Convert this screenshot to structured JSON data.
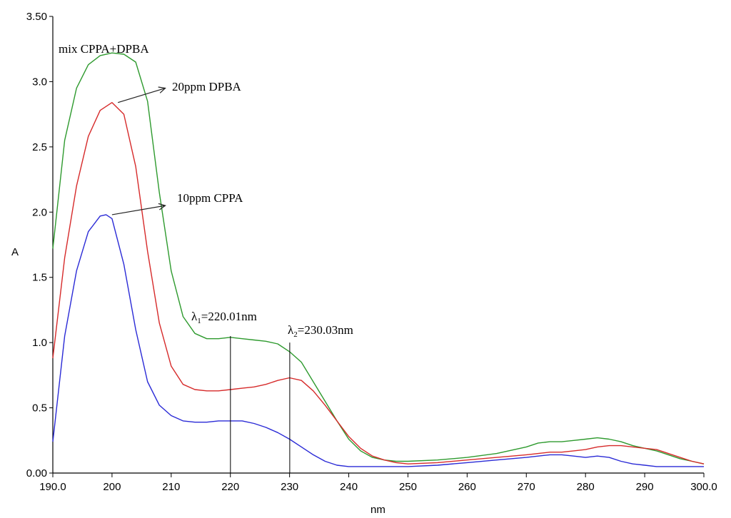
{
  "chart_data": {
    "type": "line",
    "xlabel": "nm",
    "ylabel": "A",
    "xlim": [
      190,
      300
    ],
    "ylim": [
      0,
      3.5
    ],
    "xticks": [
      "190.0",
      "200",
      "210",
      "220",
      "230",
      "240",
      "250",
      "260",
      "270",
      "280",
      "290",
      "300.0"
    ],
    "yticks": [
      "0.00",
      "0.5",
      "1.0",
      "1.5",
      "2.0",
      "2.5",
      "3.0",
      "3.50"
    ],
    "grid": false,
    "series": [
      {
        "name": "mix CPPA+DPBA",
        "color": "#2e9a2e",
        "x": [
          190,
          192,
          194,
          196,
          198,
          200,
          202,
          204,
          206,
          208,
          210,
          212,
          214,
          216,
          218,
          220,
          222,
          224,
          226,
          228,
          230,
          232,
          234,
          236,
          238,
          240,
          242,
          244,
          246,
          248,
          250,
          255,
          260,
          265,
          270,
          272,
          274,
          276,
          278,
          280,
          282,
          284,
          286,
          288,
          290,
          292,
          294,
          296,
          298,
          300
        ],
        "y": [
          1.72,
          2.55,
          2.95,
          3.13,
          3.2,
          3.22,
          3.21,
          3.15,
          2.85,
          2.15,
          1.55,
          1.2,
          1.07,
          1.03,
          1.03,
          1.04,
          1.03,
          1.02,
          1.01,
          0.99,
          0.93,
          0.85,
          0.7,
          0.55,
          0.4,
          0.26,
          0.17,
          0.12,
          0.1,
          0.09,
          0.09,
          0.1,
          0.12,
          0.15,
          0.2,
          0.23,
          0.24,
          0.24,
          0.25,
          0.26,
          0.27,
          0.26,
          0.24,
          0.21,
          0.19,
          0.17,
          0.14,
          0.11,
          0.09,
          0.07
        ]
      },
      {
        "name": "20ppm DPBA",
        "color": "#d62a2a",
        "x": [
          190,
          192,
          194,
          196,
          198,
          200,
          202,
          204,
          206,
          208,
          210,
          212,
          214,
          216,
          218,
          220,
          222,
          224,
          226,
          228,
          230,
          232,
          234,
          236,
          238,
          240,
          242,
          244,
          246,
          248,
          250,
          255,
          260,
          265,
          270,
          272,
          274,
          276,
          278,
          280,
          282,
          284,
          286,
          288,
          290,
          292,
          294,
          296,
          298,
          300
        ],
        "y": [
          0.88,
          1.65,
          2.2,
          2.58,
          2.78,
          2.84,
          2.75,
          2.35,
          1.7,
          1.15,
          0.82,
          0.68,
          0.64,
          0.63,
          0.63,
          0.64,
          0.65,
          0.66,
          0.68,
          0.71,
          0.73,
          0.71,
          0.63,
          0.52,
          0.4,
          0.28,
          0.19,
          0.13,
          0.1,
          0.08,
          0.07,
          0.08,
          0.1,
          0.12,
          0.14,
          0.15,
          0.16,
          0.16,
          0.17,
          0.18,
          0.2,
          0.21,
          0.21,
          0.2,
          0.19,
          0.18,
          0.15,
          0.12,
          0.09,
          0.07
        ]
      },
      {
        "name": "10ppm CPPA",
        "color": "#2a2ad6",
        "x": [
          190,
          192,
          194,
          196,
          198,
          199,
          200,
          202,
          204,
          206,
          208,
          210,
          212,
          214,
          216,
          218,
          220,
          222,
          224,
          226,
          228,
          230,
          232,
          234,
          236,
          238,
          240,
          245,
          250,
          255,
          260,
          265,
          270,
          272,
          274,
          276,
          278,
          280,
          282,
          284,
          286,
          288,
          290,
          292,
          294,
          296,
          298,
          300
        ],
        "y": [
          0.24,
          1.05,
          1.55,
          1.85,
          1.97,
          1.98,
          1.95,
          1.6,
          1.1,
          0.7,
          0.52,
          0.44,
          0.4,
          0.39,
          0.39,
          0.4,
          0.4,
          0.4,
          0.38,
          0.35,
          0.31,
          0.26,
          0.2,
          0.14,
          0.09,
          0.06,
          0.05,
          0.05,
          0.05,
          0.06,
          0.08,
          0.1,
          0.12,
          0.13,
          0.14,
          0.14,
          0.13,
          0.12,
          0.13,
          0.12,
          0.09,
          0.07,
          0.06,
          0.05,
          0.05,
          0.05,
          0.05,
          0.05
        ]
      }
    ],
    "annotations": {
      "mix_label": "mix CPPA+DPBA",
      "dpba_label": "20ppm DPBA",
      "cppa_label": "10ppm CPPA",
      "lambda1_symbol": "λ",
      "lambda1_sub": "1",
      "lambda1_value": "=220.01nm",
      "lambda2_symbol": "λ",
      "lambda2_sub": "2",
      "lambda2_value": "=230.03nm"
    },
    "vlines": [
      {
        "x": 220.01,
        "y_top": 1.05
      },
      {
        "x": 230.03,
        "y_top": 1.0
      }
    ],
    "arrows": [
      {
        "from": [
          201,
          2.84
        ],
        "to": [
          209,
          2.95
        ]
      },
      {
        "from": [
          200,
          1.98
        ],
        "to": [
          209,
          2.05
        ]
      }
    ]
  }
}
